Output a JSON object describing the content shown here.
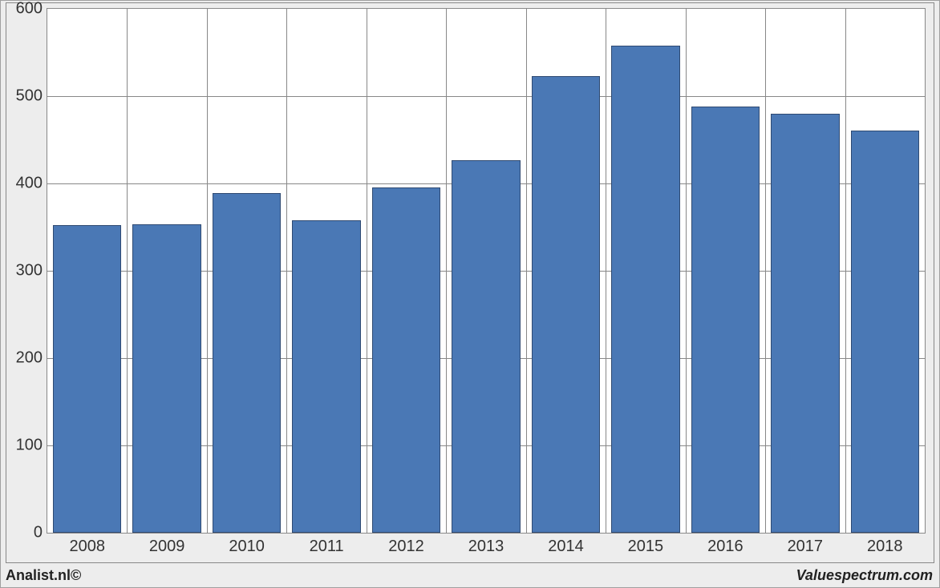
{
  "chart": {
    "type": "bar",
    "categories": [
      "2008",
      "2009",
      "2010",
      "2011",
      "2012",
      "2013",
      "2014",
      "2015",
      "2016",
      "2017",
      "2018"
    ],
    "values": [
      352,
      353,
      389,
      358,
      395,
      427,
      523,
      558,
      488,
      480,
      461
    ],
    "bar_color": "#4a78b5",
    "bar_border_color": "#2f4a72",
    "bar_width_ratio": 0.86,
    "ylim": [
      0,
      600
    ],
    "ytick_step": 100,
    "yticks": [
      0,
      100,
      200,
      300,
      400,
      500,
      600
    ],
    "grid_color": "#888888",
    "background_color": "#ffffff",
    "outer_background": "#ededed",
    "border_color": "#888888",
    "tick_fontsize": 20,
    "tick_color": "#333333"
  },
  "footer": {
    "left": "Analist.nl©",
    "right": "Valuespectrum.com",
    "fontsize": 18,
    "color": "#222222"
  }
}
